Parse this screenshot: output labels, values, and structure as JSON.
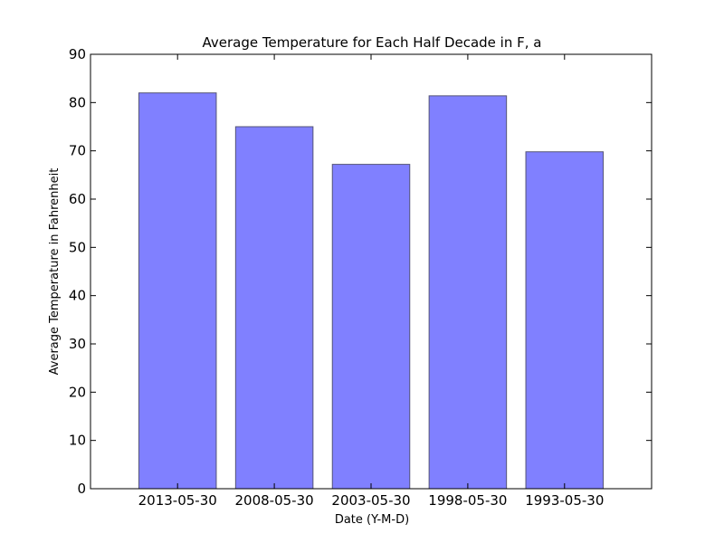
{
  "chart_data": {
    "type": "bar",
    "title": "Average Temperature for Each Half Decade in F, a",
    "xlabel": "Date (Y-M-D)",
    "ylabel": "Average Temperature in Fahrenheit",
    "categories": [
      "2013-05-30",
      "2008-05-30",
      "2003-05-30",
      "1998-05-30",
      "1993-05-30"
    ],
    "values": [
      82,
      75,
      67.2,
      81.4,
      69.8
    ],
    "ylim": [
      0,
      90
    ],
    "yticks": [
      0,
      10,
      20,
      30,
      40,
      50,
      60,
      70,
      80,
      90
    ],
    "grid": false,
    "legend": "none",
    "bar_color": "#8080ff",
    "bar_edge_color": "#555577"
  }
}
